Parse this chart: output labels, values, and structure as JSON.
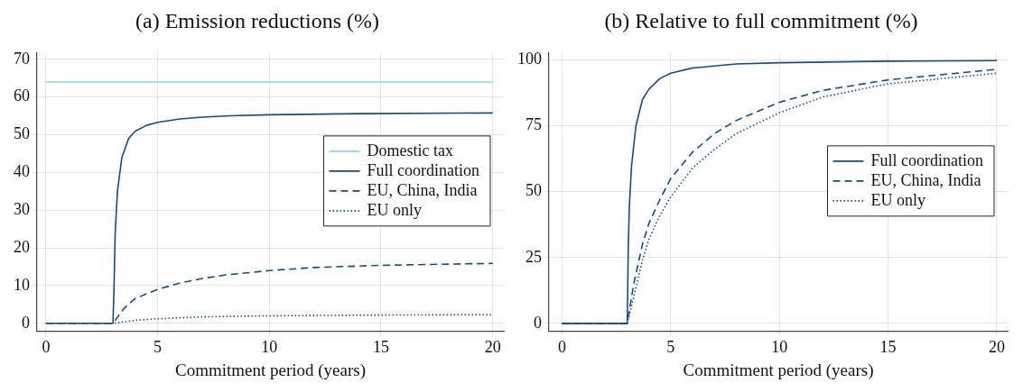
{
  "chart_data": [
    {
      "type": "line",
      "title": "(a) Emission reductions (%)",
      "xlabel": "Commitment period (years)",
      "xlim": [
        -0.4,
        20.5
      ],
      "xticks": [
        0,
        5,
        10,
        15,
        20
      ],
      "ylim": [
        -2.1,
        71.7
      ],
      "yticks": [
        0,
        10,
        20,
        30,
        40,
        50,
        60,
        70
      ],
      "grid": true,
      "legend": "right",
      "marker": "none",
      "series": [
        {
          "name": "Domestic tax",
          "color": "#9dcfe3",
          "line_style": "solid",
          "x": [
            0,
            20
          ],
          "values": [
            64,
            64
          ]
        },
        {
          "name": "Full coordination",
          "color": "#1a4a7a",
          "line_style": "solid",
          "x": [
            0,
            3,
            3.05,
            3.1,
            3.2,
            3.4,
            3.7,
            4,
            4.5,
            5,
            6,
            7,
            8,
            10,
            14,
            20
          ],
          "values": [
            0,
            0,
            10,
            24,
            35,
            44,
            49,
            51,
            52.5,
            53.3,
            54.2,
            54.7,
            55,
            55.3,
            55.6,
            55.8
          ]
        },
        {
          "name": "EU, China, India",
          "color": "#1a4a7a",
          "line_style": "dashed",
          "x": [
            0,
            3,
            3.5,
            4,
            5,
            6,
            7,
            8,
            10,
            12,
            15,
            20
          ],
          "values": [
            0,
            0,
            4,
            6.6,
            9,
            10.7,
            11.9,
            12.8,
            14,
            14.8,
            15.4,
            15.9
          ]
        },
        {
          "name": "EU only",
          "color": "#1a4a7a",
          "line_style": "dotted",
          "x": [
            0,
            3,
            4,
            5,
            7,
            10,
            15,
            20
          ],
          "values": [
            0,
            0,
            0.8,
            1.2,
            1.7,
            2,
            2.2,
            2.3
          ]
        }
      ]
    },
    {
      "type": "line",
      "title": "(b) Relative to full commitment (%)",
      "xlabel": "Commitment period (years)",
      "xlim": [
        -0.6,
        20.5
      ],
      "xticks": [
        0,
        5,
        10,
        15,
        20
      ],
      "ylim": [
        -3,
        102.7
      ],
      "yticks": [
        0,
        25,
        50,
        75,
        100
      ],
      "grid": true,
      "legend": "right",
      "marker": "none",
      "series": [
        {
          "name": "Full coordination",
          "color": "#1a4a7a",
          "line_style": "solid",
          "x": [
            0,
            3,
            3.05,
            3.1,
            3.2,
            3.4,
            3.7,
            4,
            4.5,
            5,
            6,
            8,
            10,
            15,
            20
          ],
          "values": [
            0,
            0,
            30,
            45,
            60,
            75,
            85,
            89,
            93,
            95,
            97,
            98.5,
            99,
            99.6,
            99.8
          ]
        },
        {
          "name": "EU, China, India",
          "color": "#1a4a7a",
          "line_style": "dashed",
          "x": [
            0,
            3,
            3.3,
            3.7,
            4,
            4.5,
            5,
            6,
            7,
            8,
            10,
            12,
            15,
            20
          ],
          "values": [
            0,
            0,
            15,
            30,
            38,
            47,
            55,
            65,
            72,
            77,
            84,
            88.5,
            92.5,
            96.5
          ]
        },
        {
          "name": "EU only",
          "color": "#1a4a7a",
          "line_style": "dotted",
          "x": [
            0,
            3,
            3.3,
            3.7,
            4,
            4.5,
            5,
            6,
            7,
            8,
            10,
            12,
            15,
            20
          ],
          "values": [
            0,
            0,
            10,
            24,
            32,
            41,
            48,
            59,
            66,
            72,
            80,
            86,
            91,
            95
          ]
        }
      ]
    }
  ]
}
